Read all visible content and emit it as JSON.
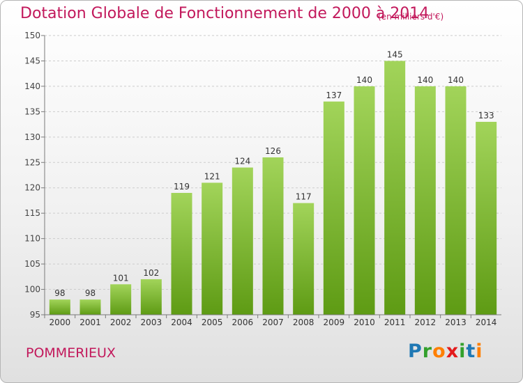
{
  "header": {
    "title": "Dotation Globale de Fonctionnement de 2000 à 2014",
    "unit": "(en milliers d'€)"
  },
  "footer": {
    "commune": "POMMERIEUX",
    "logo_text": "Proxiti"
  },
  "colors": {
    "title": "#c2185b",
    "bar_top": "#a2d45a",
    "bar_bottom": "#5e9b14",
    "grid": "#cccccc",
    "axis": "#7a7a7a"
  },
  "chart_data": {
    "type": "bar",
    "categories": [
      "2000",
      "2001",
      "2002",
      "2003",
      "2004",
      "2005",
      "2006",
      "2007",
      "2008",
      "2009",
      "2010",
      "2011",
      "2012",
      "2013",
      "2014"
    ],
    "values": [
      98,
      98,
      101,
      102,
      119,
      121,
      124,
      126,
      117,
      137,
      140,
      145,
      140,
      140,
      133
    ],
    "value_labels": [
      "98",
      "98",
      "101",
      "102",
      "119",
      "121",
      "124",
      "126",
      "117",
      "137",
      "140",
      "145",
      "140",
      "140",
      "133"
    ],
    "title": "Dotation Globale de Fonctionnement de 2000 à 2014",
    "ylim": [
      95,
      150
    ],
    "yticks": [
      95,
      100,
      105,
      110,
      115,
      120,
      125,
      130,
      135,
      140,
      145,
      150
    ],
    "ytick_labels": [
      "95",
      "100",
      "105",
      "110",
      "115",
      "120",
      "125",
      "130",
      "135",
      "140",
      "145",
      "150"
    ],
    "grid": true
  }
}
